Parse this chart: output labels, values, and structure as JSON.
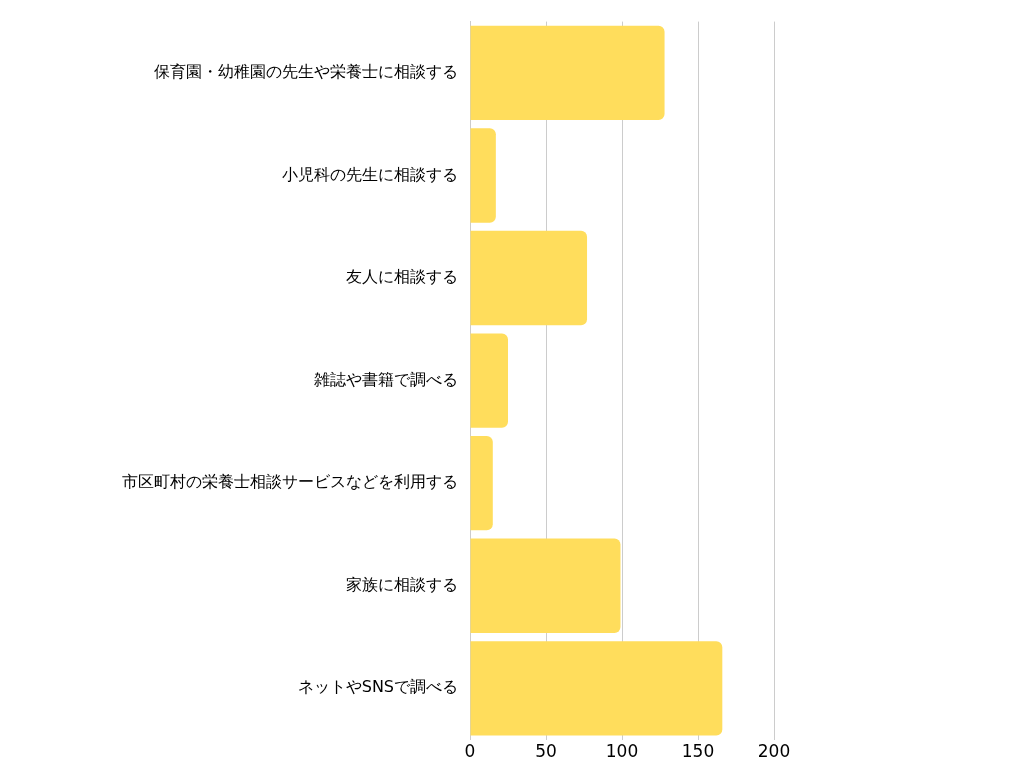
{
  "chart_data": {
    "type": "bar",
    "orientation": "horizontal",
    "categories": [
      "保育園・幼稚園の先生や栄養士に相談する",
      "小児科の先生に相談する",
      "友人に相談する",
      "雑誌や書籍で調べる",
      "市区町村の栄養士相談サービスなどを利用する",
      "家族に相談する",
      "ネットやSNSで調べる"
    ],
    "values": [
      128,
      17,
      77,
      25,
      15,
      99,
      166
    ],
    "color": "#ffdd5c",
    "xlim": [
      0,
      200
    ],
    "xticks": [
      0,
      50,
      100,
      150,
      200
    ],
    "grid": "x",
    "legend": false
  }
}
